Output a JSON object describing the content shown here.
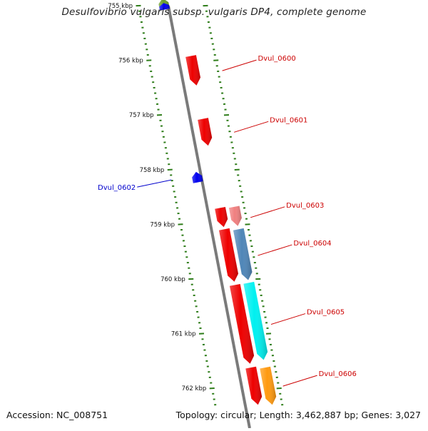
{
  "title": "Desulfovibrio vulgaris subsp. vulgaris DP4, complete genome",
  "accession": "Accession: NC_008751",
  "stats": "Topology: circular; Length: 3,462,887 bp; Genes: 3,027",
  "colors": {
    "backbone": "#7a7a7a",
    "tick": "#2f7d1a",
    "label_red": "#cc0000",
    "label_blue": "#0000cc",
    "gene_red": "#ee0000",
    "gene_pink": "#f08080",
    "gene_steelblue": "#4f86b8",
    "gene_cyan": "#00f0f0",
    "gene_orange": "#ff9a10",
    "gene_blue": "#0000ee",
    "gene_olive": "#6b9e2a"
  },
  "chart_data": {
    "type": "genome-map",
    "scale_labels": [
      {
        "kbp": 755,
        "label": "755 kbp"
      },
      {
        "kbp": 756,
        "label": "756 kbp"
      },
      {
        "kbp": 757,
        "label": "757 kbp"
      },
      {
        "kbp": 758,
        "label": "758 kbp"
      },
      {
        "kbp": 759,
        "label": "759 kbp"
      },
      {
        "kbp": 760,
        "label": "760 kbp"
      },
      {
        "kbp": 761,
        "label": "761 kbp"
      },
      {
        "kbp": 762,
        "label": "762 kbp"
      }
    ],
    "genes": [
      {
        "name": "",
        "strand": "reverse",
        "start_kbp": 754.86,
        "end_kbp": 755.07,
        "color": "gene_olive"
      },
      {
        "name": "",
        "strand": "reverse",
        "start_kbp": 754.95,
        "end_kbp": 755.07,
        "color": "gene_blue"
      },
      {
        "name": "Dvul_0600",
        "strand": "forward",
        "start_kbp": 755.92,
        "end_kbp": 756.46,
        "color": "gene_red",
        "label_color": "label_red"
      },
      {
        "name": "Dvul_0601",
        "strand": "forward",
        "start_kbp": 757.07,
        "end_kbp": 757.56,
        "color": "gene_red",
        "label_color": "label_red"
      },
      {
        "name": "Dvul_0602",
        "strand": "reverse",
        "start_kbp": 758.04,
        "end_kbp": 758.23,
        "color": "gene_blue",
        "label_color": "label_blue"
      },
      {
        "name": "Dvul_0603",
        "strand": "forward",
        "start_kbp": 758.7,
        "end_kbp": 759.05,
        "color": "gene_red",
        "label_color": "label_red"
      },
      {
        "name": "",
        "strand": "forward",
        "start_kbp": 758.68,
        "end_kbp": 759.03,
        "color": "gene_pink"
      },
      {
        "name": "Dvul_0604",
        "strand": "forward",
        "start_kbp": 759.09,
        "end_kbp": 760.05,
        "color": "gene_red",
        "label_color": "label_red"
      },
      {
        "name": "",
        "strand": "forward",
        "start_kbp": 759.09,
        "end_kbp": 760.02,
        "color": "gene_steelblue"
      },
      {
        "name": "Dvul_0605",
        "strand": "forward",
        "start_kbp": 760.11,
        "end_kbp": 761.55,
        "color": "gene_red",
        "label_color": "label_red"
      },
      {
        "name": "",
        "strand": "forward",
        "start_kbp": 760.07,
        "end_kbp": 761.48,
        "color": "gene_cyan"
      },
      {
        "name": "Dvul_0606",
        "strand": "forward",
        "start_kbp": 761.62,
        "end_kbp": 762.3,
        "color": "gene_red",
        "label_color": "label_red"
      },
      {
        "name": "",
        "strand": "forward",
        "start_kbp": 761.62,
        "end_kbp": 762.3,
        "color": "gene_orange"
      }
    ]
  }
}
